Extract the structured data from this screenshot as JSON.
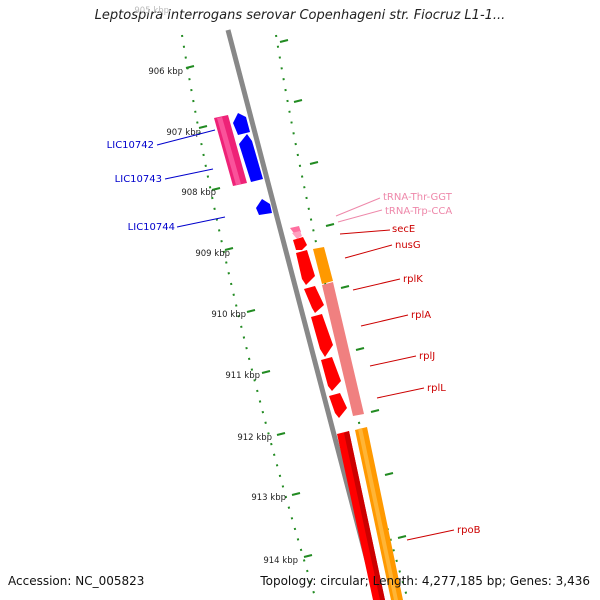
{
  "title": "Leptospira interrogans serovar Copenhageni str. Fiocruz L1-1...",
  "footer": {
    "accession_label": "Accession:",
    "accession": "NC_005823",
    "topology_label": "Topology:",
    "topology": "circular",
    "length_label": "Length:",
    "length": "4,277,185 bp",
    "genes_label": "Genes:",
    "genes": "3,436"
  },
  "ruler_ticks": [
    "905 kbp",
    "906 kbp",
    "907 kbp",
    "908 kbp",
    "909 kbp",
    "910 kbp",
    "911 kbp",
    "912 kbp",
    "913 kbp",
    "914 kbp"
  ],
  "genes_reverse": [
    {
      "name": "LIC10742",
      "color": "#0000cc"
    },
    {
      "name": "LIC10743",
      "color": "#0000cc"
    },
    {
      "name": "LIC10744",
      "color": "#0000cc"
    }
  ],
  "genes_forward": [
    {
      "name": "tRNA-Thr-GGT",
      "color": "#ee88aa"
    },
    {
      "name": "tRNA-Trp-CCA",
      "color": "#ee88aa"
    },
    {
      "name": "secE",
      "color": "#cc0000"
    },
    {
      "name": "nusG",
      "color": "#cc0000"
    },
    {
      "name": "rplK",
      "color": "#cc0000"
    },
    {
      "name": "rplA",
      "color": "#cc0000"
    },
    {
      "name": "rplJ",
      "color": "#cc0000"
    },
    {
      "name": "rplL",
      "color": "#cc0000"
    },
    {
      "name": "rpoB",
      "color": "#cc0000"
    }
  ],
  "colors": {
    "backbone": "#888888",
    "ruler": "#228b22",
    "reverse_gene": "#0000ff",
    "reverse_cog": "#ee2277",
    "forward_gene": "#ff0000",
    "trna": "#ff6fa0",
    "forward_cog_orange": "#ff9900",
    "forward_cog_pink": "#f08080"
  }
}
